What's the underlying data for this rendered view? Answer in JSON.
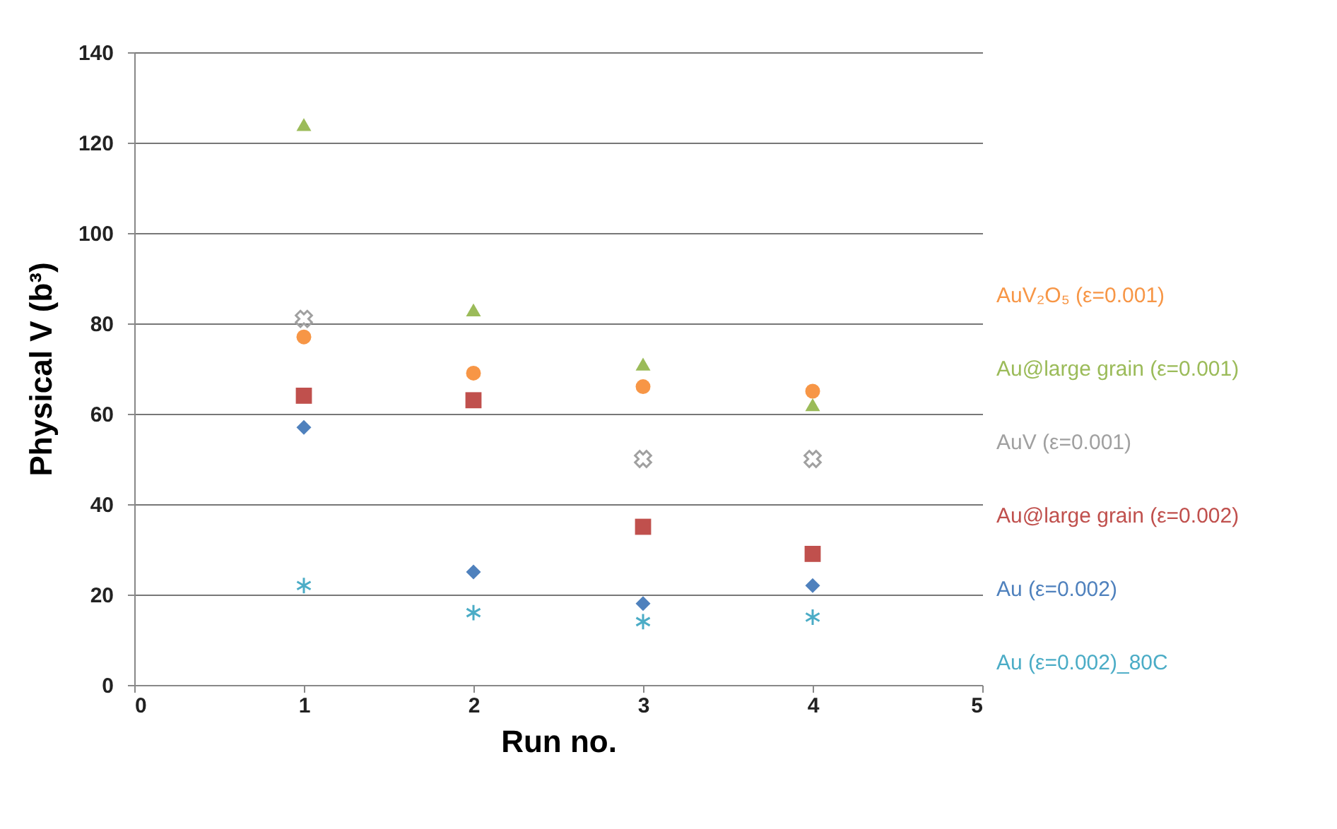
{
  "chart_data": {
    "type": "scatter",
    "xlabel": "Run no.",
    "ylabel": "Physical V (b³)",
    "x": [
      1,
      2,
      3,
      4
    ],
    "xlim": [
      0,
      5
    ],
    "xticks": [
      0,
      1,
      2,
      3,
      4,
      5
    ],
    "ylim": [
      0,
      140
    ],
    "yticks": [
      0,
      20,
      40,
      60,
      80,
      100,
      120,
      140
    ],
    "grid": "y",
    "legend": "right",
    "series": [
      {
        "name": "AuV₂O₅ (ε=0.001)",
        "color": "#f79646",
        "marker": "circle",
        "values": [
          77,
          69,
          66,
          65
        ]
      },
      {
        "name": "Au@large grain (ε=0.001)",
        "color": "#9bbb59",
        "marker": "triangle",
        "values": [
          124,
          83,
          71,
          62
        ]
      },
      {
        "name": "AuV (ε=0.001)",
        "color": "#a0a0a0",
        "marker": "cross",
        "values": [
          81,
          null,
          50,
          50
        ]
      },
      {
        "name": "Au@large grain (ε=0.002)",
        "color": "#c0504d",
        "marker": "square",
        "values": [
          64,
          63,
          35,
          29
        ]
      },
      {
        "name": "Au (ε=0.002)",
        "color": "#4f81bd",
        "marker": "diamond",
        "values": [
          57,
          25,
          18,
          22
        ]
      },
      {
        "name": "Au (ε=0.002)_80C",
        "color": "#4bacc6",
        "marker": "cross",
        "values": [
          22,
          16,
          14,
          15
        ]
      }
    ]
  }
}
